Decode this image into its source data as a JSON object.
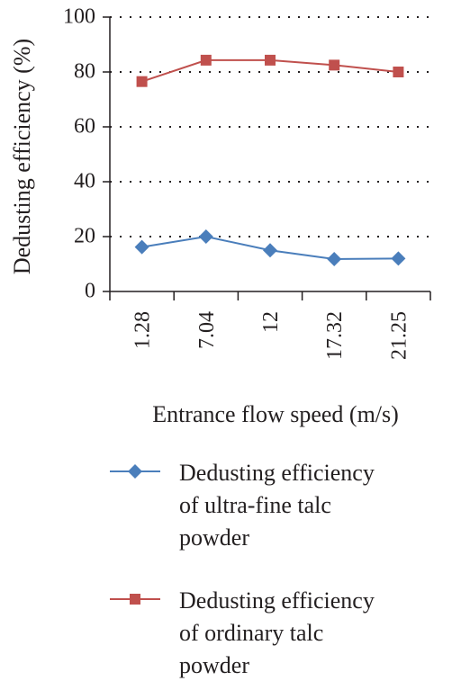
{
  "chart_data": {
    "type": "line",
    "categories": [
      "1.28",
      "7.04",
      "12",
      "17.32",
      "21.25"
    ],
    "series": [
      {
        "name": "Dedusting efficiency of ultra-fine talc powder",
        "legend_lines": [
          "Dedusting efficiency",
          "of ultra-fine talc",
          "powder"
        ],
        "values": [
          16.2,
          20,
          15,
          11.8,
          12
        ],
        "color": "#4a7ebb",
        "marker": "diamond"
      },
      {
        "name": "Dedusting efficiency of ordinary talc powder",
        "legend_lines": [
          "Dedusting efficiency",
          "of ordinary talc",
          "powder"
        ],
        "values": [
          76.5,
          84.3,
          84.3,
          82.5,
          80
        ],
        "color": "#c0504d",
        "marker": "square"
      }
    ],
    "xlabel": "Entrance flow speed (m/s)",
    "ylabel": "Dedusting efficiency (%)",
    "ylim": [
      0,
      100
    ],
    "yticks": [
      "0",
      "20",
      "40",
      "60",
      "80",
      "100"
    ],
    "grid": "horizontal-dotted",
    "legend_position": "bottom"
  }
}
